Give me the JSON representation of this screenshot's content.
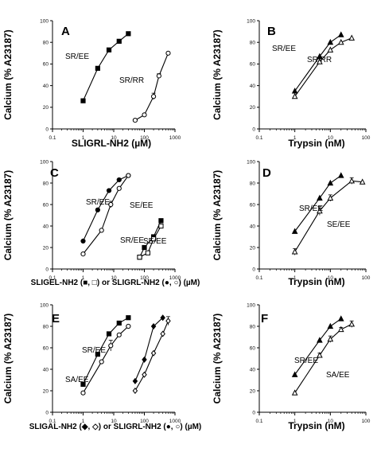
{
  "chart_data": [
    {
      "type": "scatter",
      "panel": "A",
      "xscale": "log",
      "xlim": [
        0.1,
        1000
      ],
      "ylim": [
        0,
        100
      ],
      "xticks": [
        "0.1",
        "1",
        "10",
        "100",
        "1000"
      ],
      "yticks": [
        "0",
        "20",
        "40",
        "60",
        "80",
        "100"
      ],
      "ylabel": "Calcium (% A23187)",
      "xlabel": "SLIGRL-NH2 (µM)",
      "series": [
        {
          "name": "SR/EE",
          "marker": "square-filled",
          "x": [
            1,
            3,
            7,
            15,
            30
          ],
          "y": [
            26,
            56,
            73,
            81,
            88
          ],
          "err": [
            0,
            0,
            0,
            0,
            0
          ]
        },
        {
          "name": "SR/RR",
          "marker": "circle-open",
          "x": [
            50,
            100,
            200,
            300,
            600
          ],
          "y": [
            8,
            13,
            30,
            49,
            70
          ],
          "err": [
            0,
            0,
            3,
            2,
            0
          ]
        }
      ],
      "annotations": [
        "SR/EE",
        "SR/RR"
      ]
    },
    {
      "type": "scatter",
      "panel": "B",
      "xscale": "log",
      "xlim": [
        0.1,
        100
      ],
      "ylim": [
        0,
        100
      ],
      "xticks": [
        "0.1",
        "1",
        "10",
        "100"
      ],
      "yticks": [
        "0",
        "20",
        "40",
        "60",
        "80",
        "100"
      ],
      "ylabel": "Calcium (% A23187)",
      "xlabel": "Trypsin (nM)",
      "series": [
        {
          "name": "SR/EE",
          "marker": "triangle-filled",
          "x": [
            1,
            5,
            10,
            20
          ],
          "y": [
            35,
            67,
            80,
            87
          ],
          "err": [
            0,
            0,
            0,
            0
          ]
        },
        {
          "name": "SR/RR",
          "marker": "triangle-open",
          "x": [
            1,
            5,
            10,
            20,
            40
          ],
          "y": [
            30,
            62,
            73,
            80,
            84
          ],
          "err": [
            0,
            0,
            0,
            0,
            0
          ]
        }
      ],
      "annotations": [
        "SR/EE",
        "SR/RR"
      ]
    },
    {
      "type": "scatter",
      "panel": "C",
      "xscale": "log",
      "xlim": [
        0.1,
        1000
      ],
      "ylim": [
        0,
        100
      ],
      "xticks": [
        "0.1",
        "1",
        "10",
        "100",
        "1000"
      ],
      "yticks": [
        "0",
        "20",
        "40",
        "60",
        "80",
        "100"
      ],
      "ylabel": "Calcium (% A23187)",
      "xlabel": "SLIGEL-NH2 (■, □) or SLIGRL-NH2 (●, ○) (µM)",
      "series": [
        {
          "name": "SLIGRL-NH2 SR/EE",
          "marker": "circle-filled",
          "x": [
            1,
            3,
            7,
            15,
            30
          ],
          "y": [
            26,
            55,
            73,
            83,
            87
          ],
          "err": [
            0,
            0,
            0,
            0,
            0
          ]
        },
        {
          "name": "SLIGRL-NH2 SE/EE",
          "marker": "circle-open",
          "x": [
            1,
            4,
            8,
            15,
            30
          ],
          "y": [
            14,
            36,
            60,
            75,
            87
          ],
          "err": [
            0,
            0,
            3,
            0,
            0
          ]
        },
        {
          "name": "SLIGEL-NH2 SR/EE",
          "marker": "square-filled",
          "x": [
            70,
            100,
            200,
            350
          ],
          "y": [
            11,
            20,
            30,
            45
          ],
          "err": [
            0,
            0,
            0,
            0
          ]
        },
        {
          "name": "SLIGEL-NH2 SE/EE",
          "marker": "square-open",
          "x": [
            70,
            130,
            200,
            350
          ],
          "y": [
            11,
            15,
            28,
            40
          ],
          "err": [
            0,
            0,
            2,
            0
          ]
        }
      ],
      "annotations": [
        "SR/EE",
        "SE/EE",
        "SR/EE",
        "SE/EE"
      ]
    },
    {
      "type": "scatter",
      "panel": "D",
      "xscale": "log",
      "xlim": [
        0.1,
        100
      ],
      "ylim": [
        0,
        100
      ],
      "xticks": [
        "0.1",
        "1",
        "10",
        "100"
      ],
      "yticks": [
        "0",
        "20",
        "40",
        "60",
        "80",
        "100"
      ],
      "ylabel": "Calcium (% A23187)",
      "xlabel": "Trypsin (nM)",
      "series": [
        {
          "name": "SR/EE",
          "marker": "triangle-filled",
          "x": [
            1,
            5,
            10,
            20
          ],
          "y": [
            35,
            66,
            80,
            87
          ],
          "err": [
            0,
            0,
            0,
            0
          ]
        },
        {
          "name": "SE/EE",
          "marker": "triangle-open",
          "x": [
            1,
            5,
            10,
            40,
            80
          ],
          "y": [
            16,
            54,
            66,
            82,
            81
          ],
          "err": [
            3,
            4,
            3,
            3,
            0
          ]
        }
      ],
      "annotations": [
        "SR/EE",
        "SE/EE"
      ]
    },
    {
      "type": "scatter",
      "panel": "E",
      "xscale": "log",
      "xlim": [
        0.1,
        1000
      ],
      "ylim": [
        0,
        100
      ],
      "xticks": [
        "0.1",
        "1",
        "10",
        "100",
        "1000"
      ],
      "yticks": [
        "0",
        "20",
        "40",
        "60",
        "80",
        "100"
      ],
      "ylabel": "Calcium (% A23187)",
      "xlabel": "SLIGAL-NH2 (◆, ◇) or SLIGRL-NH2 (●, ○) (µM)",
      "series": [
        {
          "name": "SLIGRL-NH2 SR/EE",
          "marker": "square-filled",
          "x": [
            1,
            3,
            7,
            15,
            30
          ],
          "y": [
            26,
            54,
            73,
            83,
            88
          ],
          "err": [
            0,
            0,
            0,
            0,
            0
          ]
        },
        {
          "name": "SLIGRL-NH2 SA/EE",
          "marker": "circle-open",
          "x": [
            1,
            4,
            8,
            15,
            30
          ],
          "y": [
            18,
            47,
            62,
            72,
            80
          ],
          "err": [
            0,
            0,
            5,
            0,
            0
          ]
        },
        {
          "name": "SLIGAL-NH2 SR/EE",
          "marker": "diamond-filled",
          "x": [
            50,
            100,
            200,
            400
          ],
          "y": [
            29,
            49,
            80,
            88
          ],
          "err": [
            0,
            0,
            0,
            0
          ]
        },
        {
          "name": "SLIGAL-NH2 SA/EE",
          "marker": "diamond-open",
          "x": [
            50,
            100,
            200,
            400,
            600
          ],
          "y": [
            20,
            35,
            55,
            73,
            85
          ],
          "err": [
            0,
            0,
            0,
            0,
            4
          ]
        }
      ],
      "annotations": [
        "SR/EE",
        "SA/EE"
      ]
    },
    {
      "type": "scatter",
      "panel": "F",
      "xscale": "log",
      "xlim": [
        0.1,
        100
      ],
      "ylim": [
        0,
        100
      ],
      "xticks": [
        "0.1",
        "1",
        "10",
        "100"
      ],
      "yticks": [
        "0",
        "20",
        "40",
        "60",
        "80",
        "100"
      ],
      "ylabel": "Calcium (% A23187)",
      "xlabel": "Trypsin (nM)",
      "series": [
        {
          "name": "SR/EE",
          "marker": "triangle-filled",
          "x": [
            1,
            5,
            10,
            20
          ],
          "y": [
            35,
            67,
            80,
            87
          ],
          "err": [
            0,
            0,
            0,
            0
          ]
        },
        {
          "name": "SA/EE",
          "marker": "triangle-open",
          "x": [
            1,
            5,
            10,
            20,
            40
          ],
          "y": [
            18,
            53,
            68,
            77,
            82
          ],
          "err": [
            0,
            2,
            3,
            2,
            3
          ]
        }
      ],
      "annotations": [
        "SR/EE",
        "SA/EE"
      ]
    }
  ]
}
